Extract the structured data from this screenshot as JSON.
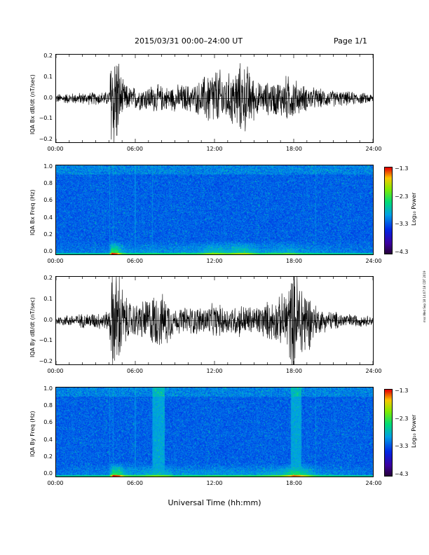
{
  "header": {
    "date_range": "2015/03/31  00:00–24:00 UT",
    "page": "Page 1/1"
  },
  "x_axis_title": "Universal Time (hh:mm)",
  "stamp": "mss Wed Sep 18 14:07:18 CDT 2019",
  "chart_data": [
    {
      "type": "line",
      "ylabel": "IQA Bx dB/dt (nT/sec)",
      "ylim": [
        -0.2,
        0.2
      ],
      "yticks": [
        "0.2",
        "0.1",
        "0.0",
        "−0.1",
        "−0.2"
      ],
      "x_ticks": [
        "00:00",
        "06:00",
        "12:00",
        "18:00",
        "24:00"
      ],
      "activity_hours": [
        [
          0,
          0.02
        ],
        [
          4.0,
          0.03
        ],
        [
          4.2,
          0.25
        ],
        [
          4.6,
          0.22
        ],
        [
          5.0,
          0.08
        ],
        [
          5.5,
          0.05
        ],
        [
          6.5,
          0.05
        ],
        [
          7.5,
          0.06
        ],
        [
          8.5,
          0.05
        ],
        [
          9.5,
          0.06
        ],
        [
          10.5,
          0.06
        ],
        [
          11.0,
          0.08
        ],
        [
          11.5,
          0.12
        ],
        [
          12.0,
          0.13
        ],
        [
          12.5,
          0.12
        ],
        [
          13.0,
          0.1
        ],
        [
          13.5,
          0.13
        ],
        [
          14.0,
          0.15
        ],
        [
          14.5,
          0.14
        ],
        [
          15.0,
          0.09
        ],
        [
          15.5,
          0.06
        ],
        [
          16.0,
          0.07
        ],
        [
          17.0,
          0.08
        ],
        [
          17.5,
          0.1
        ],
        [
          18.0,
          0.09
        ],
        [
          18.5,
          0.06
        ],
        [
          20.0,
          0.04
        ],
        [
          22.0,
          0.03
        ],
        [
          24.0,
          0.02
        ]
      ]
    },
    {
      "type": "heatmap",
      "ylabel": "IQA Bx Freq (Hz)",
      "ylim": [
        0,
        1.0
      ],
      "yticks": [
        "1.0",
        "0.8",
        "0.6",
        "0.4",
        "0.2",
        "0.0"
      ],
      "x_ticks": [
        "00:00",
        "06:00",
        "12:00",
        "18:00",
        "24:00"
      ],
      "colorbar_ticks": [
        "−1.3",
        "−2.3",
        "−3.3",
        "−4.3"
      ],
      "colorbar_label": "Log₁₀ Power"
    },
    {
      "type": "line",
      "ylabel": "IQA By dB/dt (nT/sec)",
      "ylim": [
        -0.2,
        0.2
      ],
      "yticks": [
        "0.2",
        "0.1",
        "0.0",
        "−0.1",
        "−0.2"
      ],
      "x_ticks": [
        "00:00",
        "06:00",
        "12:00",
        "18:00",
        "24:00"
      ],
      "activity_hours": [
        [
          0,
          0.02
        ],
        [
          4.0,
          0.04
        ],
        [
          4.3,
          0.25
        ],
        [
          4.8,
          0.22
        ],
        [
          5.2,
          0.1
        ],
        [
          6.0,
          0.07
        ],
        [
          7.0,
          0.1
        ],
        [
          7.5,
          0.12
        ],
        [
          8.0,
          0.11
        ],
        [
          8.5,
          0.1
        ],
        [
          9.0,
          0.05
        ],
        [
          10.0,
          0.06
        ],
        [
          11.0,
          0.06
        ],
        [
          12.0,
          0.07
        ],
        [
          13.0,
          0.06
        ],
        [
          14.0,
          0.07
        ],
        [
          15.0,
          0.06
        ],
        [
          16.0,
          0.08
        ],
        [
          17.0,
          0.1
        ],
        [
          17.5,
          0.15
        ],
        [
          18.0,
          0.22
        ],
        [
          18.5,
          0.2
        ],
        [
          19.0,
          0.14
        ],
        [
          19.5,
          0.08
        ],
        [
          20.0,
          0.05
        ],
        [
          22.0,
          0.03
        ],
        [
          24.0,
          0.02
        ]
      ]
    },
    {
      "type": "heatmap",
      "ylabel": "IQA By Freq (Hz)",
      "ylim": [
        0,
        1.0
      ],
      "yticks": [
        "1.0",
        "0.8",
        "0.6",
        "0.4",
        "0.2",
        "0.0"
      ],
      "x_ticks": [
        "00:00",
        "06:00",
        "12:00",
        "18:00",
        "24:00"
      ],
      "colorbar_ticks": [
        "−1.3",
        "−2.3",
        "−3.3",
        "−4.3"
      ],
      "colorbar_label": "Log₁₀ Power"
    }
  ]
}
